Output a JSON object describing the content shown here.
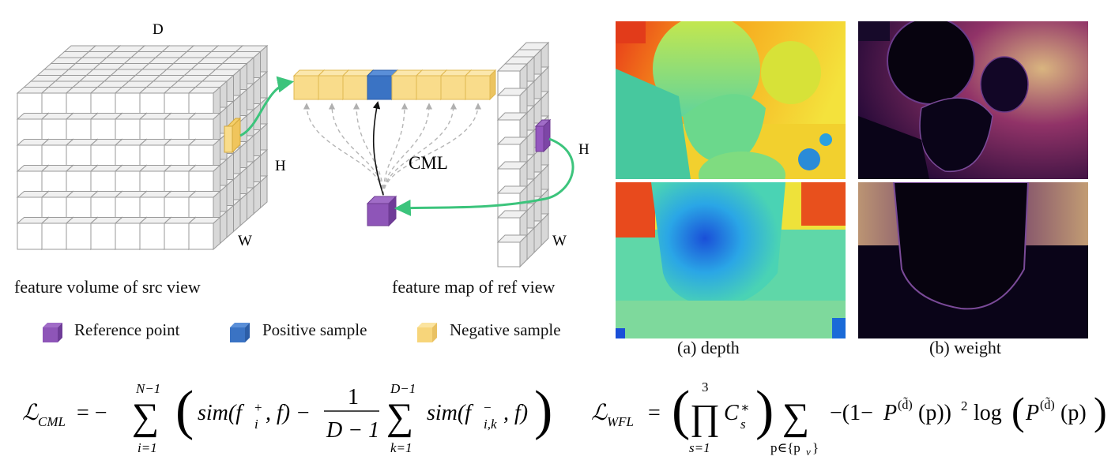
{
  "diagram": {
    "cube_labels": {
      "d": "D",
      "h_src": "H",
      "w_src": "W",
      "h_ref": "H",
      "w_ref": "W",
      "cml": "CML"
    },
    "captions": {
      "src": "feature volume of src view",
      "ref": "feature map of ref view"
    },
    "legend": [
      {
        "label": "Reference point",
        "color": "#8e55b8"
      },
      {
        "label": "Positive sample",
        "color": "#3a73c4"
      },
      {
        "label": "Negative sample",
        "color": "#f7d57a"
      }
    ],
    "arrow_color": "#3cc47c",
    "panels": {
      "depth": "(a) depth",
      "weight": "(b) weight"
    }
  },
  "equations": {
    "cml": {
      "lhs": "ℒ",
      "lhs_sub": "CML"
    },
    "wfl": {
      "lhs": "ℒ",
      "lhs_sub": "WFL"
    }
  }
}
